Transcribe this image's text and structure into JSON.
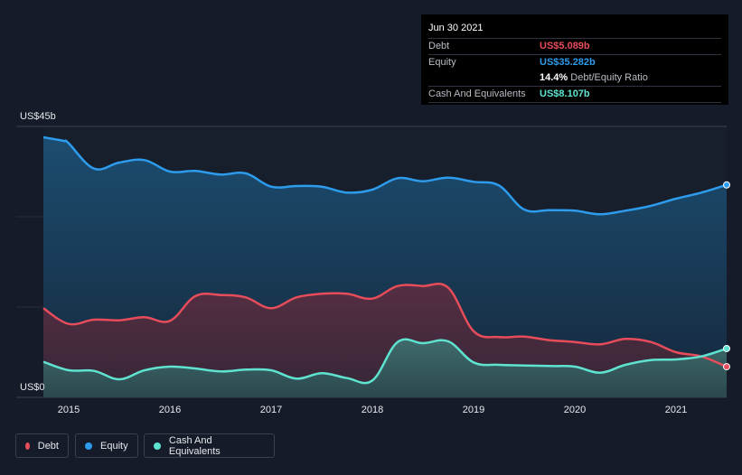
{
  "tooltip": {
    "date": "Jun 30 2021",
    "debt_label": "Debt",
    "debt_value": "US$5.089b",
    "equity_label": "Equity",
    "equity_value": "US$35.282b",
    "ratio_value": "14.4%",
    "ratio_label": "Debt/Equity Ratio",
    "cash_label": "Cash And Equivalents",
    "cash_value": "US$8.107b"
  },
  "legend": {
    "debt": "Debt",
    "equity": "Equity",
    "cash": "Cash And Equivalents"
  },
  "colors": {
    "debt": "#e64c5a",
    "equity": "#2d9cec",
    "cash": "#5fe3d0",
    "background": "#151b28"
  },
  "chart_data": {
    "type": "area",
    "title": "",
    "xlabel": "",
    "ylabel": "",
    "y_top_label": "US$45b",
    "y_bottom_label": "US$0",
    "ylim": [
      0,
      45
    ],
    "xlim": [
      2014.75,
      2021.5
    ],
    "x_ticks": [
      2015,
      2016,
      2017,
      2018,
      2019,
      2020,
      2021
    ],
    "x_tick_labels": [
      "2015",
      "2016",
      "2017",
      "2018",
      "2019",
      "2020",
      "2021"
    ],
    "grid": true,
    "legend_position": "bottom-left",
    "series": [
      {
        "name": "Equity",
        "color": "#2d9cec",
        "points": [
          [
            2014.75,
            43.2
          ],
          [
            2014.95,
            42.6
          ],
          [
            2015.0,
            42.2
          ],
          [
            2015.25,
            38.0
          ],
          [
            2015.5,
            39.0
          ],
          [
            2015.75,
            39.4
          ],
          [
            2016.0,
            37.5
          ],
          [
            2016.25,
            37.6
          ],
          [
            2016.5,
            37.0
          ],
          [
            2016.75,
            37.2
          ],
          [
            2017.0,
            35.0
          ],
          [
            2017.25,
            35.1
          ],
          [
            2017.5,
            35.0
          ],
          [
            2017.75,
            34.0
          ],
          [
            2018.0,
            34.5
          ],
          [
            2018.25,
            36.4
          ],
          [
            2018.5,
            35.9
          ],
          [
            2018.75,
            36.5
          ],
          [
            2019.0,
            35.8
          ],
          [
            2019.25,
            35.2
          ],
          [
            2019.5,
            31.2
          ],
          [
            2019.75,
            31.1
          ],
          [
            2020.0,
            31.0
          ],
          [
            2020.25,
            30.4
          ],
          [
            2020.5,
            31.0
          ],
          [
            2020.75,
            31.8
          ],
          [
            2021.0,
            33.0
          ],
          [
            2021.25,
            34.0
          ],
          [
            2021.5,
            35.282
          ]
        ]
      },
      {
        "name": "Debt",
        "color": "#e64c5a",
        "points": [
          [
            2014.75,
            14.8
          ],
          [
            2015.0,
            12.2
          ],
          [
            2015.25,
            12.9
          ],
          [
            2015.5,
            12.8
          ],
          [
            2015.75,
            13.3
          ],
          [
            2016.0,
            12.7
          ],
          [
            2016.25,
            16.8
          ],
          [
            2016.5,
            17.0
          ],
          [
            2016.75,
            16.6
          ],
          [
            2017.0,
            14.8
          ],
          [
            2017.25,
            16.6
          ],
          [
            2017.5,
            17.2
          ],
          [
            2017.75,
            17.2
          ],
          [
            2018.0,
            16.4
          ],
          [
            2018.25,
            18.5
          ],
          [
            2018.5,
            18.5
          ],
          [
            2018.75,
            18.2
          ],
          [
            2019.0,
            11.0
          ],
          [
            2019.25,
            10.0
          ],
          [
            2019.5,
            10.1
          ],
          [
            2019.75,
            9.5
          ],
          [
            2020.0,
            9.2
          ],
          [
            2020.25,
            8.8
          ],
          [
            2020.5,
            9.7
          ],
          [
            2020.75,
            9.2
          ],
          [
            2021.0,
            7.5
          ],
          [
            2021.25,
            6.8
          ],
          [
            2021.5,
            5.089
          ]
        ]
      },
      {
        "name": "Cash And Equivalents",
        "color": "#5fe3d0",
        "points": [
          [
            2014.75,
            5.9
          ],
          [
            2015.0,
            4.5
          ],
          [
            2015.25,
            4.4
          ],
          [
            2015.5,
            3.0
          ],
          [
            2015.75,
            4.5
          ],
          [
            2016.0,
            5.1
          ],
          [
            2016.25,
            4.8
          ],
          [
            2016.5,
            4.3
          ],
          [
            2016.75,
            4.6
          ],
          [
            2017.0,
            4.5
          ],
          [
            2017.25,
            3.1
          ],
          [
            2017.5,
            4.0
          ],
          [
            2017.75,
            3.2
          ],
          [
            2018.0,
            2.8
          ],
          [
            2018.25,
            9.2
          ],
          [
            2018.5,
            9.0
          ],
          [
            2018.75,
            9.3
          ],
          [
            2019.0,
            5.8
          ],
          [
            2019.25,
            5.4
          ],
          [
            2019.5,
            5.3
          ],
          [
            2019.75,
            5.2
          ],
          [
            2020.0,
            5.1
          ],
          [
            2020.25,
            4.1
          ],
          [
            2020.5,
            5.4
          ],
          [
            2020.75,
            6.2
          ],
          [
            2021.0,
            6.3
          ],
          [
            2021.25,
            6.8
          ],
          [
            2021.5,
            8.107
          ]
        ]
      }
    ]
  }
}
